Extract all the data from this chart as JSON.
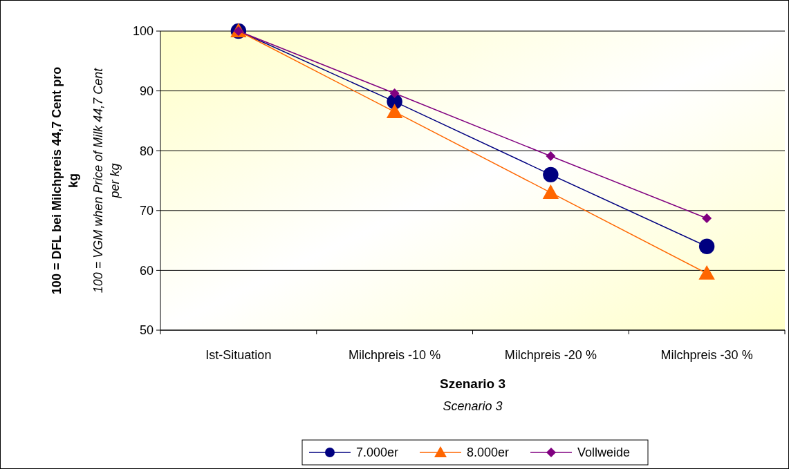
{
  "chart_data": {
    "type": "line",
    "xlabel": "Szenario 3",
    "ylabel": "100 = DFL bei Milchpreis 44,7 Cent pro kg",
    "annotations": [
      "100 = VGM when Price of Milk 44,7 Cent per kg",
      "Scenario 3"
    ],
    "categories": [
      "Ist-Situation",
      "Milchpreis -10 %",
      "Milchpreis -20 %",
      "Milchpreis -30 %"
    ],
    "series": [
      {
        "name": "7.000er",
        "color": "#000080",
        "marker": "circle",
        "values": [
          100,
          88.2,
          76,
          64
        ]
      },
      {
        "name": "8.000er",
        "color": "#ff6600",
        "marker": "triangle",
        "values": [
          100,
          86.5,
          73,
          59.5
        ]
      },
      {
        "name": "Vollweide",
        "color": "#800080",
        "marker": "diamond",
        "values": [
          100,
          89.6,
          79.1,
          68.7
        ]
      }
    ],
    "ylim": [
      50,
      100
    ],
    "yticks": [
      50,
      60,
      70,
      80,
      90,
      100
    ],
    "grid": "y",
    "legend": "bottom"
  }
}
